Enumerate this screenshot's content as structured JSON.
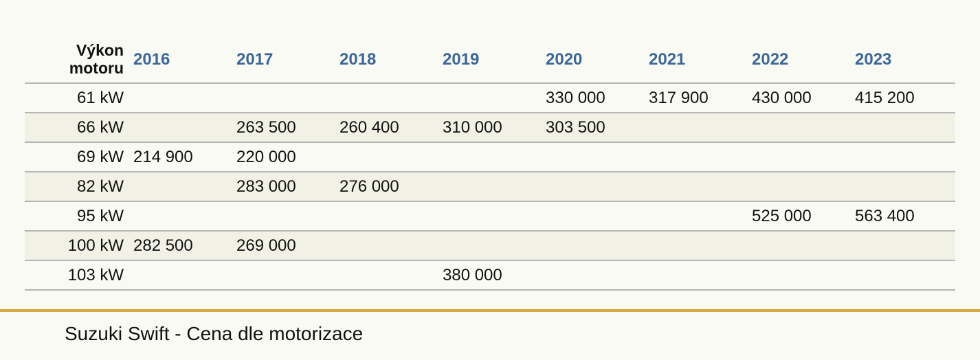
{
  "chart_data": {
    "type": "table",
    "row_header": "Výkon motoru",
    "columns": [
      "2016",
      "2017",
      "2018",
      "2019",
      "2020",
      "2021",
      "2022",
      "2023"
    ],
    "rows": [
      {
        "label": "61 kW",
        "cells": [
          "",
          "",
          "",
          "",
          "330 000",
          "317 900",
          "430 000",
          "415 200"
        ]
      },
      {
        "label": "66 kW",
        "cells": [
          "",
          "263 500",
          "260 400",
          "310 000",
          "303 500",
          "",
          "",
          ""
        ]
      },
      {
        "label": "69 kW",
        "cells": [
          "214 900",
          "220 000",
          "",
          "",
          "",
          "",
          "",
          ""
        ]
      },
      {
        "label": "82 kW",
        "cells": [
          "",
          "283 000",
          "276 000",
          "",
          "",
          "",
          "",
          ""
        ]
      },
      {
        "label": "95 kW",
        "cells": [
          "",
          "",
          "",
          "",
          "",
          "",
          "525 000",
          "563 400"
        ]
      },
      {
        "label": "100 kW",
        "cells": [
          "282 500",
          "269 000",
          "",
          "",
          "",
          "",
          "",
          ""
        ]
      },
      {
        "label": "103 kW",
        "cells": [
          "",
          "",
          "",
          "380 000",
          "",
          "",
          "",
          ""
        ]
      }
    ],
    "title": "Suzuki Swift - Cena dle motorizace"
  },
  "colors": {
    "year_header": "#3d6796",
    "alt_row": "#f1f1e5",
    "background": "#fafaf5",
    "accent_line": "#d4ab3c"
  }
}
